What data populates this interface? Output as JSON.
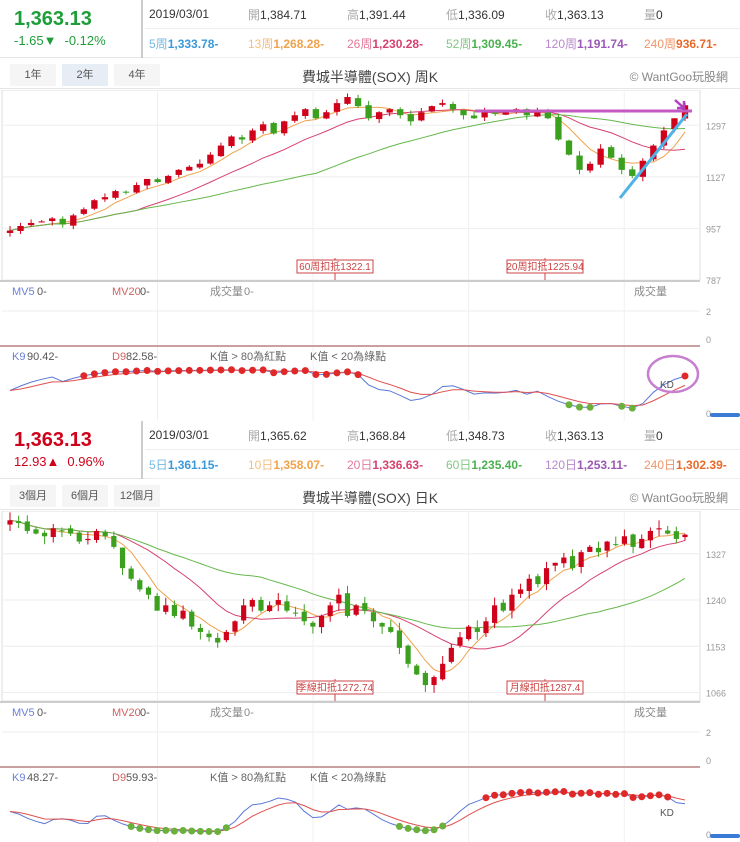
{
  "colors": {
    "up": "#d0021b",
    "down": "#3aa01e",
    "ma1": "#f0a24c",
    "ma2": "#d6426f",
    "ma3": "#67b84d",
    "k": "#5a78d8",
    "d": "#e05050"
  },
  "weekly": {
    "price": "1,363.13",
    "change": "-1.65▼",
    "pct": "-0.12%",
    "direction": "down",
    "date": "2019/03/01",
    "ohlcv": [
      {
        "k": "開",
        "v": "1,384.71"
      },
      {
        "k": "高",
        "v": "1,391.44"
      },
      {
        "k": "低",
        "v": "1,336.09"
      },
      {
        "k": "收",
        "v": "1,363.13"
      },
      {
        "k": "量",
        "v": "0"
      }
    ],
    "ma": [
      {
        "k": "5周",
        "v": "1,333.78-",
        "c": "#3a9ad9"
      },
      {
        "k": "13周",
        "v": "1,268.28-",
        "c": "#f0a24c"
      },
      {
        "k": "26周",
        "v": "1,230.28-",
        "c": "#d6426f"
      },
      {
        "k": "52周",
        "v": "1,309.45-",
        "c": "#4caf50"
      },
      {
        "k": "120周",
        "v": "1,191.74-",
        "c": "#9b59b6"
      },
      {
        "k": "240周",
        "v": "936.71-",
        "c": "#e8692a"
      }
    ],
    "tabs": [
      "1年",
      "2年",
      "4年"
    ],
    "active_tab": 1,
    "title": "費城半導體(SOX) 周K",
    "copyright": "© WantGoo玩股網",
    "yticks": [
      1297,
      1127,
      957,
      787
    ],
    "notes": [
      "60周扣抵1322.1",
      "20周扣抵1225.94"
    ],
    "vol": {
      "mv5": "MV5",
      "mv5v": "0-",
      "mv20": "MV20",
      "mv20v": "0-",
      "vol": "成交量",
      "volv": "0-",
      "right": "成交量",
      "ticks": [
        "2",
        "0"
      ]
    },
    "kd": {
      "k": "K9",
      "kv": "90.42-",
      "d": "D9",
      "dv": "82.58-",
      "r1": "K值 > 80為紅點",
      "r2": "K值 < 20為綠點",
      "tag": "KD",
      "tick": "0"
    }
  },
  "daily": {
    "price": "1,363.13",
    "change": "12.93▲",
    "pct": "0.96%",
    "direction": "up",
    "date": "2019/03/01",
    "ohlcv": [
      {
        "k": "開",
        "v": "1,365.62"
      },
      {
        "k": "高",
        "v": "1,368.84"
      },
      {
        "k": "低",
        "v": "1,348.73"
      },
      {
        "k": "收",
        "v": "1,363.13"
      },
      {
        "k": "量",
        "v": "0"
      }
    ],
    "ma": [
      {
        "k": "5日",
        "v": "1,361.15-",
        "c": "#3a9ad9"
      },
      {
        "k": "10日",
        "v": "1,358.07-",
        "c": "#f0a24c"
      },
      {
        "k": "20日",
        "v": "1,336.63-",
        "c": "#d6426f"
      },
      {
        "k": "60日",
        "v": "1,235.40-",
        "c": "#4caf50"
      },
      {
        "k": "120日",
        "v": "1,253.11-",
        "c": "#9b59b6"
      },
      {
        "k": "240日",
        "v": "1,302.39-",
        "c": "#e8692a"
      }
    ],
    "tabs": [
      "3個月",
      "6個月",
      "12個月"
    ],
    "active_tab": -1,
    "title": "費城半導體(SOX) 日K",
    "copyright": "© WantGoo玩股網",
    "yticks": [
      1327,
      1240,
      1153,
      1066
    ],
    "notes": [
      "季線扣抵1272.74",
      "月線扣抵1287.4"
    ],
    "vol": {
      "mv5": "MV5",
      "mv5v": "0-",
      "mv20": "MV20",
      "mv20v": "0-",
      "vol": "成交量",
      "volv": "0-",
      "right": "成交量",
      "ticks": [
        "2",
        "0"
      ]
    },
    "kd": {
      "k": "K9",
      "kv": "48.27-",
      "d": "D9",
      "dv": "59.93-",
      "r1": "K值 > 80為紅點",
      "r2": "K值 < 20為綠點",
      "tag": "KD",
      "tick": "0"
    }
  },
  "chart_data": [
    {
      "type": "candlestick",
      "title": "費城半導體(SOX) 周K",
      "ylim": [
        787,
        1400
      ],
      "yticks": [
        1297,
        1127,
        957,
        787
      ],
      "close": [
        950,
        965,
        975,
        980,
        990,
        970,
        1000,
        1020,
        1050,
        1060,
        1080,
        1075,
        1100,
        1120,
        1110,
        1130,
        1150,
        1160,
        1170,
        1200,
        1230,
        1260,
        1250,
        1280,
        1300,
        1270,
        1310,
        1330,
        1350,
        1320,
        1340,
        1370,
        1390,
        1360,
        1320,
        1340,
        1350,
        1330,
        1310,
        1340,
        1360,
        1370,
        1350,
        1330,
        1320,
        1340,
        1335,
        1345,
        1350,
        1330,
        1340,
        1320,
        1250,
        1200,
        1150,
        1170,
        1220,
        1190,
        1150,
        1130,
        1180,
        1230,
        1280,
        1320,
        1363
      ]
    },
    {
      "type": "candlestick",
      "title": "費城半導體(SOX) 日K",
      "ylim": [
        1050,
        1400
      ],
      "yticks": [
        1327,
        1240,
        1153,
        1066
      ],
      "close": [
        1390,
        1385,
        1370,
        1365,
        1360,
        1375,
        1370,
        1365,
        1350,
        1355,
        1370,
        1360,
        1340,
        1300,
        1280,
        1260,
        1250,
        1220,
        1230,
        1210,
        1220,
        1190,
        1180,
        1170,
        1160,
        1180,
        1200,
        1230,
        1240,
        1220,
        1230,
        1240,
        1220,
        1215,
        1200,
        1190,
        1210,
        1230,
        1250,
        1210,
        1230,
        1220,
        1200,
        1190,
        1180,
        1150,
        1120,
        1100,
        1080,
        1095,
        1120,
        1150,
        1170,
        1190,
        1180,
        1200,
        1230,
        1220,
        1250,
        1260,
        1280,
        1270,
        1300,
        1310,
        1320,
        1300,
        1330,
        1340,
        1330,
        1350,
        1345,
        1360,
        1340,
        1355,
        1370,
        1375,
        1365,
        1355,
        1363
      ]
    }
  ]
}
